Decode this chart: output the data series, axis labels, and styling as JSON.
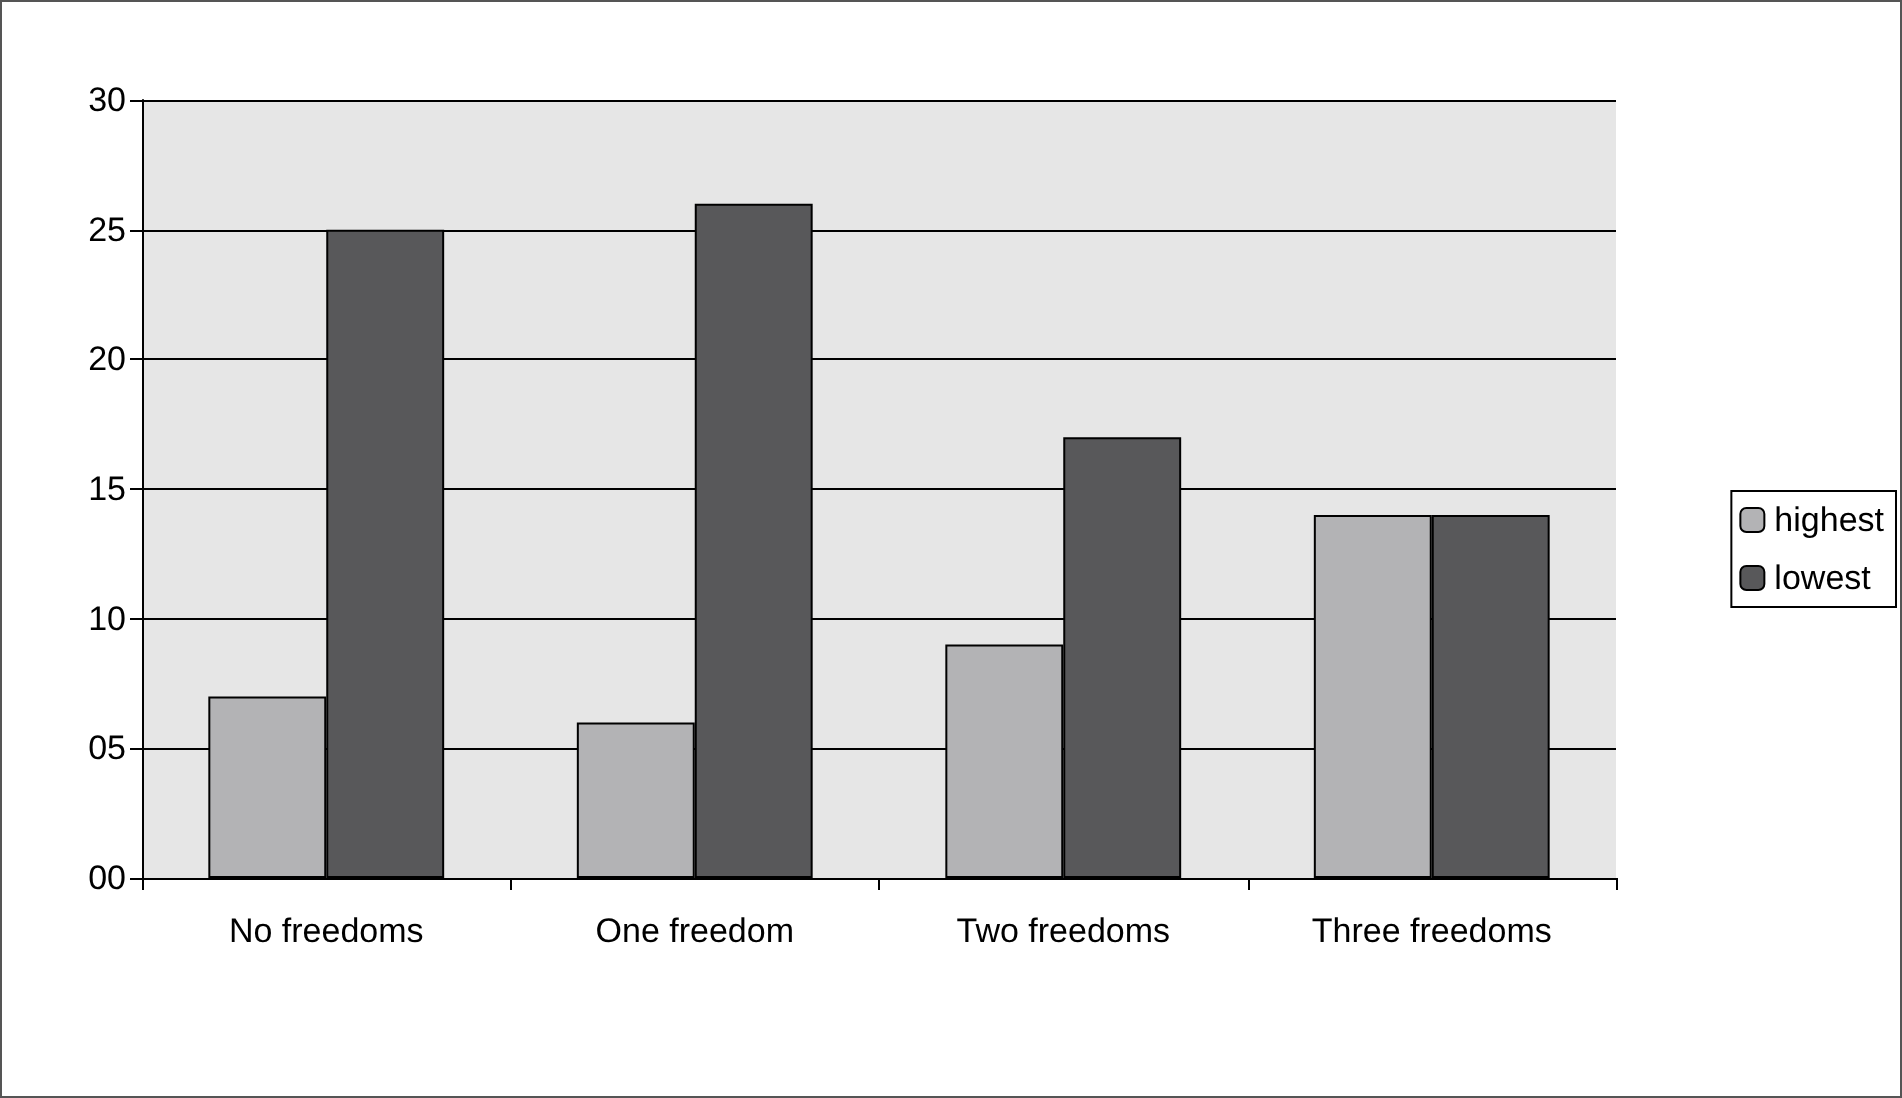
{
  "chart_data": {
    "type": "bar",
    "categories": [
      "No freedoms",
      "One freedom",
      "Two freedoms",
      "Three freedoms"
    ],
    "series": [
      {
        "name": "highest",
        "color": "#b3b3b5",
        "values": [
          7,
          6,
          9,
          14
        ]
      },
      {
        "name": "lowest",
        "color": "#58585a",
        "values": [
          25,
          26,
          17,
          14
        ]
      }
    ],
    "ylim": [
      0,
      30
    ],
    "yticks": [
      {
        "value": 0,
        "label": "00"
      },
      {
        "value": 5,
        "label": "05"
      },
      10,
      15,
      20,
      25,
      30
    ],
    "grid": "y",
    "legend": "right"
  }
}
